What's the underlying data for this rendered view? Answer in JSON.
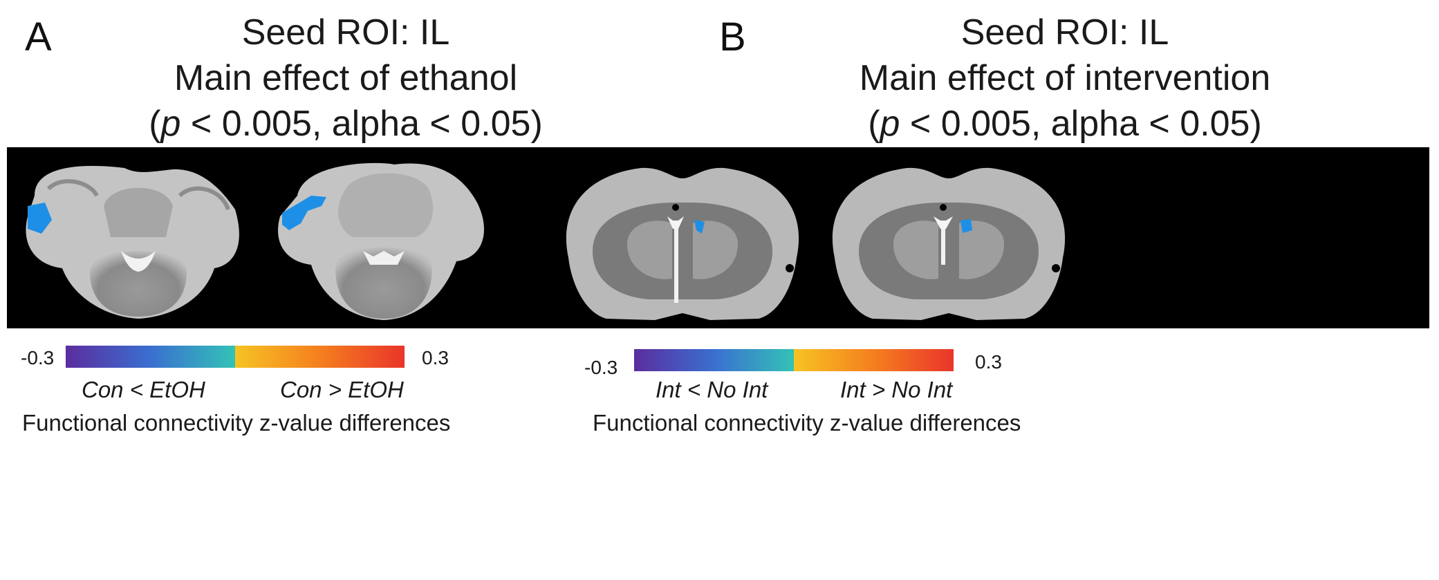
{
  "panels": [
    {
      "letter": "A",
      "title_line1": "Seed ROI: IL",
      "title_line2": "Main effect of ethanol",
      "title_p": "p",
      "title_rest": " < 0.005, alpha < 0.05)",
      "colorbar": {
        "min_label": "-0.3",
        "max_label": "0.3",
        "left_comparison": "Con < EtOH",
        "right_comparison": "Con > EtOH",
        "caption": "Functional connectivity z-value differences"
      }
    },
    {
      "letter": "B",
      "title_line1": "Seed ROI: IL",
      "title_line2": "Main effect of intervention",
      "title_p": "p",
      "title_rest": " < 0.005, alpha < 0.05)",
      "colorbar": {
        "min_label": "-0.3",
        "max_label": "0.3",
        "left_comparison": "Int < No Int",
        "right_comparison": "Int > No Int",
        "caption": "Functional connectivity z-value differences"
      }
    }
  ],
  "colors": {
    "background": "#000000",
    "cluster": "#1e8fe6",
    "tissue_light": "#bdbdbd",
    "tissue_dark": "#6e6e6e",
    "colormap_stops": [
      "#5b2d9e",
      "#3a6fd0",
      "#33c2b7",
      "#f6c323",
      "#f57f1f",
      "#e9352a"
    ]
  }
}
